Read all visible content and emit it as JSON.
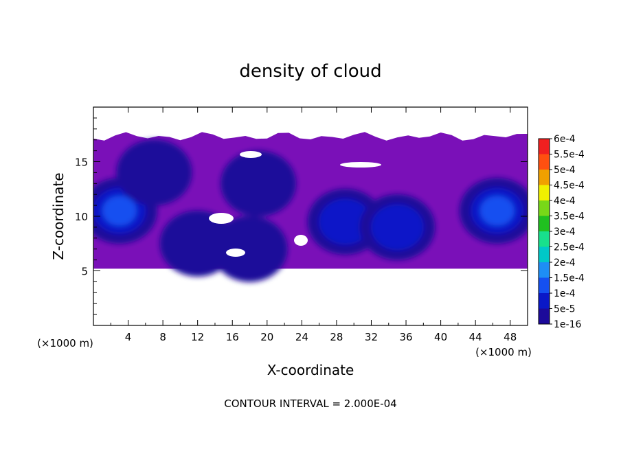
{
  "chart_data": {
    "type": "heatmap",
    "title": "density of cloud",
    "xlabel": "X-coordinate",
    "ylabel": "Z-coordinate",
    "x_unit": "(×1000 m)",
    "y_unit": "(×1000 m)",
    "xlim": [
      0,
      50
    ],
    "ylim": [
      0,
      20
    ],
    "x_ticks": [
      "4",
      "8",
      "12",
      "16",
      "20",
      "24",
      "28",
      "32",
      "36",
      "40",
      "44",
      "48"
    ],
    "x_tick_values": [
      4,
      8,
      12,
      16,
      20,
      24,
      28,
      32,
      36,
      40,
      44,
      48
    ],
    "y_ticks": [
      "5",
      "10",
      "15"
    ],
    "y_tick_values": [
      5,
      10,
      15
    ],
    "cloud_layer_z_range": [
      5.2,
      17.3
    ],
    "colorbar": {
      "labels": [
        "1e-16",
        "5e-5",
        "1e-4",
        "1.5e-4",
        "2e-4",
        "2.5e-4",
        "3e-4",
        "3.5e-4",
        "4e-4",
        "4.5e-4",
        "5e-4",
        "5.5e-4",
        "6e-4"
      ],
      "colors": [
        "#7a10b8",
        "#1c0a9a",
        "#0a18c8",
        "#1550f0",
        "#1e8ef5",
        "#00c8c8",
        "#18e08c",
        "#20c020",
        "#78d818",
        "#f0f000",
        "#f0a000",
        "#ff5010",
        "#f02020",
        "#f47a7a"
      ]
    },
    "blobs": [
      {
        "x": 3,
        "z": 10.5,
        "value": 0.00017
      },
      {
        "x": 7,
        "z": 14,
        "value": 9e-05
      },
      {
        "x": 19,
        "z": 13,
        "value": 7e-05
      },
      {
        "x": 29,
        "z": 9.5,
        "value": 0.00014
      },
      {
        "x": 35,
        "z": 9,
        "value": 0.0001
      },
      {
        "x": 46.5,
        "z": 10.5,
        "value": 0.00016
      },
      {
        "x": 12,
        "z": 7.5,
        "value": 6e-05
      },
      {
        "x": 18,
        "z": 7,
        "value": 6e-05
      }
    ],
    "footnote": "CONTOUR INTERVAL = 2.000E-04"
  },
  "colors": {
    "background": "#ffffff",
    "frame": "#000000",
    "base_fill": "#7a10b8"
  }
}
